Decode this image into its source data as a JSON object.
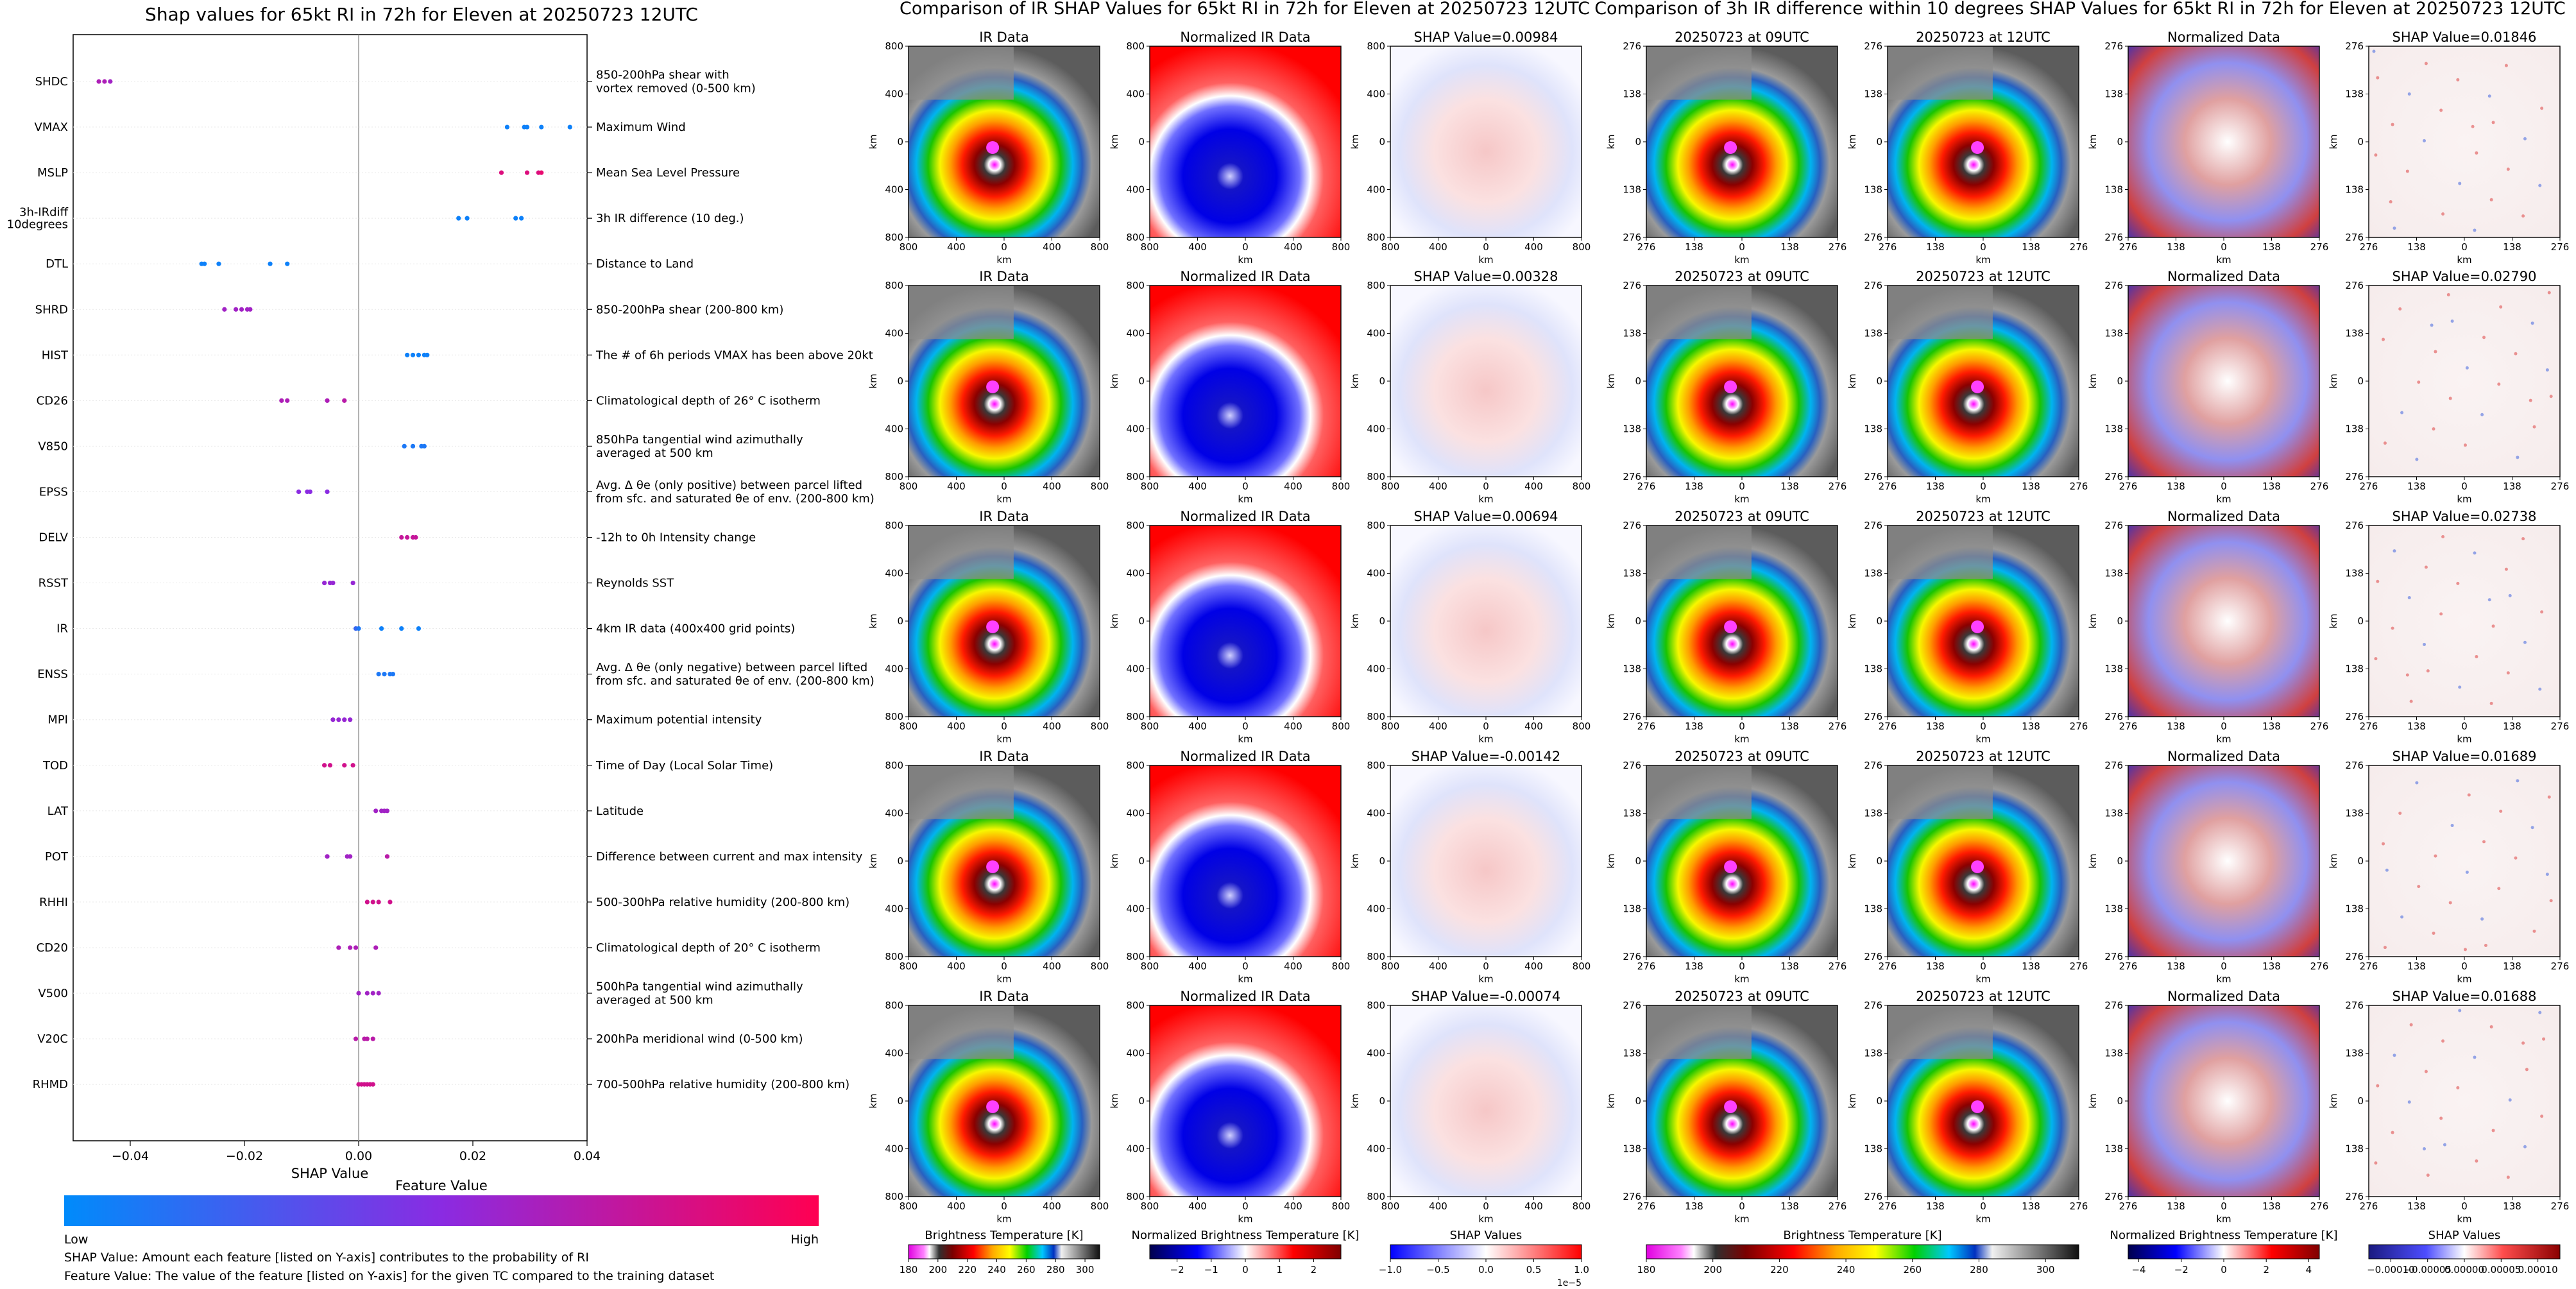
{
  "chart_data": [
    {
      "type": "scatter",
      "title": "Shap values for 65kt RI in 72h for Eleven at 20250723 12UTC",
      "xlabel": "SHAP Value",
      "ylabel": "",
      "xlim": [
        -0.05,
        0.04
      ],
      "xticks": [
        -0.04,
        -0.02,
        0.0,
        0.02,
        0.04
      ],
      "xtick_labels": [
        "−0.04",
        "−0.02",
        "0.00",
        "0.02",
        "0.04"
      ],
      "grid": false,
      "features": [
        {
          "name": "SHDC",
          "desc": [
            "850-200hPa shear with",
            "vortex removed (0-500 km)"
          ],
          "shap": [
            -0.0455,
            -0.0445,
            -0.0435
          ],
          "value": [
            0.65,
            0.65,
            0.6
          ]
        },
        {
          "name": "VMAX",
          "desc": [
            "Maximum Wind"
          ],
          "shap": [
            0.026,
            0.029,
            0.0295,
            0.032,
            0.037
          ],
          "value": [
            0.05,
            0.05,
            0.05,
            0.05,
            0.05
          ]
        },
        {
          "name": "MSLP",
          "desc": [
            "Mean Sea Level Pressure"
          ],
          "shap": [
            0.025,
            0.0295,
            0.0315,
            0.032
          ],
          "value": [
            0.85,
            0.85,
            0.85,
            0.9
          ]
        },
        {
          "name": "3h-IRdiff 10degrees",
          "label_lines": [
            "3h-IRdiff",
            "10degrees"
          ],
          "desc": [
            "3h IR difference (10 deg.)"
          ],
          "shap": [
            0.0175,
            0.019,
            0.0275,
            0.0285
          ],
          "value": [
            0.05,
            0.05,
            0.05,
            0.05
          ]
        },
        {
          "name": "DTL",
          "desc": [
            "Distance to Land"
          ],
          "shap": [
            -0.0275,
            -0.027,
            -0.0245,
            -0.0155,
            -0.0125
          ],
          "value": [
            0.05,
            0.05,
            0.05,
            0.05,
            0.05
          ]
        },
        {
          "name": "SHRD",
          "desc": [
            "850-200hPa shear (200-800 km)"
          ],
          "shap": [
            -0.0235,
            -0.0215,
            -0.0205,
            -0.0195,
            -0.019
          ],
          "value": [
            0.6,
            0.6,
            0.6,
            0.6,
            0.6
          ]
        },
        {
          "name": "HIST",
          "desc": [
            "The # of 6h periods VMAX has been above 20kt"
          ],
          "shap": [
            0.0085,
            0.0095,
            0.0105,
            0.0115,
            0.012
          ],
          "value": [
            0.05,
            0.05,
            0.05,
            0.05,
            0.05
          ]
        },
        {
          "name": "CD26",
          "desc": [
            "Climatological depth of 26° C isotherm"
          ],
          "shap": [
            -0.0135,
            -0.0125,
            -0.0055,
            -0.0025
          ],
          "value": [
            0.65,
            0.65,
            0.65,
            0.7
          ]
        },
        {
          "name": "V850",
          "desc": [
            "850hPa tangential wind azimuthally",
            "averaged at 500 km"
          ],
          "shap": [
            0.008,
            0.0095,
            0.011,
            0.0115
          ],
          "value": [
            0.1,
            0.1,
            0.1,
            0.1
          ]
        },
        {
          "name": "EPSS",
          "desc": [
            "Avg. Δ θe (only positive) between parcel lifted",
            "from sfc. and saturated θe of env. (200-800 km)"
          ],
          "shap": [
            -0.0105,
            -0.009,
            -0.0085,
            -0.0055
          ],
          "value": [
            0.5,
            0.5,
            0.5,
            0.5
          ]
        },
        {
          "name": "DELV",
          "desc": [
            "-12h to 0h Intensity change"
          ],
          "shap": [
            0.0075,
            0.0085,
            0.0095,
            0.01
          ],
          "value": [
            0.75,
            0.75,
            0.75,
            0.75
          ]
        },
        {
          "name": "RSST",
          "desc": [
            "Reynolds SST"
          ],
          "shap": [
            -0.006,
            -0.005,
            -0.0045,
            -0.001
          ],
          "value": [
            0.55,
            0.55,
            0.55,
            0.55
          ]
        },
        {
          "name": "IR",
          "desc": [
            "4km IR data (400x400 grid points)"
          ],
          "shap": [
            -0.0005,
            0.0,
            0.004,
            0.0075,
            0.0105
          ],
          "value": [
            0.2,
            0.1,
            0.05,
            0.05,
            0.05
          ]
        },
        {
          "name": "ENSS",
          "desc": [
            "Avg. Δ θe (only negative) between parcel lifted",
            "from sfc. and saturated θe of env. (200-800 km)"
          ],
          "shap": [
            0.0035,
            0.0045,
            0.0055,
            0.006
          ],
          "value": [
            0.1,
            0.1,
            0.1,
            0.1
          ]
        },
        {
          "name": "MPI",
          "desc": [
            "Maximum potential intensity"
          ],
          "shap": [
            -0.0045,
            -0.0035,
            -0.0025,
            -0.0015
          ],
          "value": [
            0.55,
            0.55,
            0.55,
            0.55
          ]
        },
        {
          "name": "TOD",
          "desc": [
            "Time of Day (Local Solar Time)"
          ],
          "shap": [
            -0.006,
            -0.005,
            -0.0025,
            -0.001
          ],
          "value": [
            0.8,
            0.8,
            0.8,
            0.8
          ]
        },
        {
          "name": "LAT",
          "desc": [
            "Latitude"
          ],
          "shap": [
            0.003,
            0.004,
            0.0045,
            0.005
          ],
          "value": [
            0.6,
            0.6,
            0.6,
            0.6
          ]
        },
        {
          "name": "POT",
          "desc": [
            "Difference between current and max intensity"
          ],
          "shap": [
            -0.0055,
            -0.002,
            -0.0015,
            0.005
          ],
          "value": [
            0.6,
            0.6,
            0.6,
            0.7
          ]
        },
        {
          "name": "RHHI",
          "desc": [
            "500-300hPa relative humidity (200-800 km)"
          ],
          "shap": [
            0.0015,
            0.0025,
            0.0035,
            0.0055
          ],
          "value": [
            0.8,
            0.8,
            0.8,
            0.8
          ]
        },
        {
          "name": "CD20",
          "desc": [
            "Climatological depth of 20° C isotherm"
          ],
          "shap": [
            -0.0035,
            -0.0015,
            -0.0005,
            0.003
          ],
          "value": [
            0.65,
            0.65,
            0.65,
            0.65
          ]
        },
        {
          "name": "V500",
          "desc": [
            "500hPa tangential wind azimuthally",
            "averaged at 500 km"
          ],
          "shap": [
            0.0,
            0.0015,
            0.0025,
            0.0035
          ],
          "value": [
            0.6,
            0.6,
            0.6,
            0.6
          ]
        },
        {
          "name": "V20C",
          "desc": [
            "200hPa meridional wind (0-500 km)"
          ],
          "shap": [
            -0.0005,
            0.001,
            0.0015,
            0.0025
          ],
          "value": [
            0.7,
            0.7,
            0.7,
            0.7
          ]
        },
        {
          "name": "RHMD",
          "desc": [
            "700-500hPa relative humidity (200-800 km)"
          ],
          "shap": [
            0.0,
            0.0005,
            0.001,
            0.0015,
            0.002,
            0.0025
          ],
          "value": [
            0.8,
            0.8,
            0.8,
            0.8,
            0.8,
            0.8
          ]
        }
      ],
      "colorbar": {
        "title": "Feature Value",
        "low_label": "Low",
        "high_label": "High",
        "colors": [
          "#008bfb",
          "#8a2be2",
          "#ff0052"
        ]
      },
      "footnotes": [
        "SHAP Value: Amount each feature [listed on Y-axis] contributes to the probability of RI",
        "Feature Value: The value of the feature [listed on Y-axis] for the given TC compared to the training dataset"
      ]
    },
    {
      "type": "heatmap",
      "title": "Comparison of IR SHAP Values for 65kt RI in 72h for Eleven at 20250723 12UTC",
      "column_titles": [
        "IR Data",
        "Normalized IR Data"
      ],
      "shap_titles": [
        "SHAP Value=0.00984",
        "SHAP Value=0.00328",
        "SHAP Value=0.00694",
        "SHAP Value=-0.00142",
        "SHAP Value=-0.00074"
      ],
      "xlabel": "km",
      "ylabel": "km",
      "tick_labels": [
        "800",
        "400",
        "0",
        "400",
        "800"
      ],
      "colorbars": [
        {
          "label": "Brightness Temperature [K]",
          "ticks": [
            "180",
            "200",
            "220",
            "240",
            "260",
            "280",
            "300"
          ],
          "range": [
            180,
            310
          ]
        },
        {
          "label": "Normalized Brightness Temperature [K]",
          "ticks": [
            "−2",
            "−1",
            "0",
            "1",
            "2"
          ],
          "range": [
            -2.8,
            2.8
          ]
        },
        {
          "label": "SHAP Values",
          "ticks": [
            "−1.0",
            "−0.5",
            "0.0",
            "0.5",
            "1.0"
          ],
          "range": [
            -1.0,
            1.0
          ],
          "exponent": "1e−5"
        }
      ]
    },
    {
      "type": "heatmap",
      "title": "Comparison of 3h IR difference within 10 degrees SHAP Values for 65kt RI in 72h for Eleven at 20250723 12UTC",
      "column_titles": [
        "20250723 at 09UTC",
        "20250723 at 12UTC",
        "Normalized Data"
      ],
      "shap_titles": [
        "SHAP Value=0.01846",
        "SHAP Value=0.02790",
        "SHAP Value=0.02738",
        "SHAP Value=0.01689",
        "SHAP Value=0.01688"
      ],
      "xlabel": "km",
      "ylabel": "km",
      "tick_labels": [
        "276",
        "138",
        "0",
        "138",
        "276"
      ],
      "colorbars": [
        {
          "label": "Brightness Temperature [K]",
          "ticks": [
            "180",
            "200",
            "220",
            "240",
            "260",
            "280",
            "300"
          ],
          "range": [
            180,
            310
          ]
        },
        {
          "label": "Normalized Brightness Temperature [K]",
          "ticks": [
            "−4",
            "−2",
            "0",
            "2",
            "4"
          ],
          "range": [
            -4.5,
            4.5
          ]
        },
        {
          "label": "SHAP Values",
          "ticks": [
            "−0.00010",
            "−0.00005",
            "0.00000",
            "0.00005",
            "0.00010"
          ],
          "range": [
            -0.00013,
            0.00013
          ]
        }
      ]
    }
  ]
}
